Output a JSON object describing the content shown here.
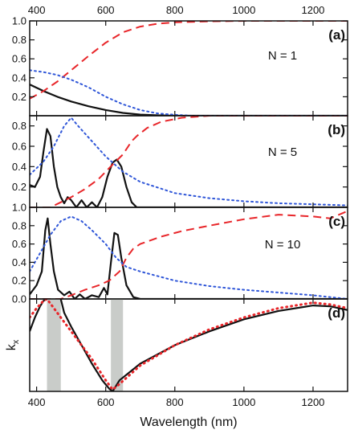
{
  "chart_data": {
    "type": "line",
    "xlabel": "Wavelength (nm)",
    "xlim": [
      380,
      1300
    ],
    "x_ticks": [
      400,
      600,
      800,
      1000,
      1200
    ],
    "colors": {
      "solid": "#111111",
      "dashed": "#e8262a",
      "dotted": "#2f56d8",
      "band": "#c9ccc9",
      "dotted_d": "#e8262a"
    },
    "panels": [
      {
        "id": "a",
        "label": "(a)",
        "annotation": "N = 1",
        "ylim": [
          0,
          1.0
        ],
        "y_ticks": [
          0.2,
          0.4,
          0.6,
          0.8,
          1.0
        ],
        "series": [
          {
            "style": "solid",
            "points": [
              [
                380,
                0.33
              ],
              [
                420,
                0.26
              ],
              [
                460,
                0.2
              ],
              [
                500,
                0.15
              ],
              [
                550,
                0.1
              ],
              [
                600,
                0.06
              ],
              [
                650,
                0.03
              ],
              [
                700,
                0.012
              ],
              [
                750,
                0.004
              ],
              [
                800,
                0.0
              ],
              [
                1300,
                0.0
              ]
            ]
          },
          {
            "style": "dashed",
            "points": [
              [
                380,
                0.18
              ],
              [
                420,
                0.26
              ],
              [
                460,
                0.36
              ],
              [
                500,
                0.48
              ],
              [
                550,
                0.63
              ],
              [
                600,
                0.77
              ],
              [
                650,
                0.88
              ],
              [
                700,
                0.94
              ],
              [
                750,
                0.97
              ],
              [
                800,
                0.985
              ],
              [
                900,
                0.995
              ],
              [
                1000,
                1.0
              ],
              [
                1300,
                1.0
              ]
            ]
          },
          {
            "style": "dotted",
            "points": [
              [
                380,
                0.48
              ],
              [
                420,
                0.46
              ],
              [
                460,
                0.43
              ],
              [
                500,
                0.38
              ],
              [
                550,
                0.3
              ],
              [
                600,
                0.2
              ],
              [
                650,
                0.12
              ],
              [
                700,
                0.06
              ],
              [
                750,
                0.025
              ],
              [
                800,
                0.01
              ],
              [
                850,
                0.0
              ],
              [
                1300,
                0.0
              ]
            ]
          }
        ]
      },
      {
        "id": "b",
        "label": "(b)",
        "annotation": "N = 5",
        "ylim": [
          0,
          0.9
        ],
        "y_ticks": [
          0.2,
          0.4,
          0.6,
          0.8
        ],
        "series": [
          {
            "style": "solid",
            "points": [
              [
                380,
                0.22
              ],
              [
                395,
                0.2
              ],
              [
                410,
                0.3
              ],
              [
                420,
                0.55
              ],
              [
                430,
                0.77
              ],
              [
                440,
                0.7
              ],
              [
                450,
                0.4
              ],
              [
                460,
                0.2
              ],
              [
                470,
                0.1
              ],
              [
                480,
                0.04
              ],
              [
                490,
                0.1
              ],
              [
                500,
                0.07
              ],
              [
                515,
                0.0
              ],
              [
                530,
                0.07
              ],
              [
                545,
                0.0
              ],
              [
                560,
                0.05
              ],
              [
                575,
                0.0
              ],
              [
                590,
                0.1
              ],
              [
                605,
                0.3
              ],
              [
                620,
                0.44
              ],
              [
                632,
                0.47
              ],
              [
                645,
                0.4
              ],
              [
                660,
                0.2
              ],
              [
                675,
                0.05
              ],
              [
                690,
                0.0
              ],
              [
                1300,
                0.0
              ]
            ]
          },
          {
            "style": "dashed",
            "points": [
              [
                380,
                0.0
              ],
              [
                440,
                0.0
              ],
              [
                470,
                0.05
              ],
              [
                500,
                0.1
              ],
              [
                540,
                0.18
              ],
              [
                580,
                0.28
              ],
              [
                620,
                0.42
              ],
              [
                650,
                0.52
              ],
              [
                675,
                0.65
              ],
              [
                690,
                0.7
              ],
              [
                720,
                0.78
              ],
              [
                760,
                0.84
              ],
              [
                820,
                0.88
              ],
              [
                900,
                0.9
              ],
              [
                1300,
                0.9
              ]
            ]
          },
          {
            "style": "dotted",
            "points": [
              [
                380,
                0.32
              ],
              [
                420,
                0.45
              ],
              [
                450,
                0.6
              ],
              [
                480,
                0.8
              ],
              [
                500,
                0.88
              ],
              [
                520,
                0.8
              ],
              [
                560,
                0.65
              ],
              [
                600,
                0.5
              ],
              [
                650,
                0.35
              ],
              [
                700,
                0.25
              ],
              [
                800,
                0.14
              ],
              [
                900,
                0.09
              ],
              [
                1000,
                0.06
              ],
              [
                1100,
                0.04
              ],
              [
                1200,
                0.03
              ],
              [
                1300,
                0.02
              ]
            ]
          }
        ]
      },
      {
        "id": "c",
        "label": "(c)",
        "annotation": "N = 10",
        "ylim": [
          0,
          1.0
        ],
        "y_ticks": [
          0.0,
          0.2,
          0.4,
          0.6,
          0.8,
          1.0
        ],
        "series": [
          {
            "style": "solid",
            "points": [
              [
                380,
                0.05
              ],
              [
                400,
                0.15
              ],
              [
                415,
                0.3
              ],
              [
                425,
                0.75
              ],
              [
                432,
                0.88
              ],
              [
                440,
                0.6
              ],
              [
                450,
                0.3
              ],
              [
                462,
                0.1
              ],
              [
                480,
                0.04
              ],
              [
                495,
                0.08
              ],
              [
                510,
                0.0
              ],
              [
                525,
                0.05
              ],
              [
                540,
                0.0
              ],
              [
                560,
                0.04
              ],
              [
                580,
                0.02
              ],
              [
                595,
                0.12
              ],
              [
                605,
                0.05
              ],
              [
                615,
                0.4
              ],
              [
                625,
                0.72
              ],
              [
                635,
                0.7
              ],
              [
                645,
                0.45
              ],
              [
                660,
                0.15
              ],
              [
                680,
                0.02
              ],
              [
                700,
                0.0
              ],
              [
                1300,
                0.0
              ]
            ]
          },
          {
            "style": "dashed",
            "points": [
              [
                380,
                0.0
              ],
              [
                440,
                0.0
              ],
              [
                470,
                0.0
              ],
              [
                500,
                0.04
              ],
              [
                540,
                0.1
              ],
              [
                580,
                0.15
              ],
              [
                610,
                0.2
              ],
              [
                640,
                0.3
              ],
              [
                660,
                0.45
              ],
              [
                680,
                0.55
              ],
              [
                700,
                0.6
              ],
              [
                760,
                0.68
              ],
              [
                820,
                0.74
              ],
              [
                900,
                0.8
              ],
              [
                1000,
                0.87
              ],
              [
                1100,
                0.92
              ],
              [
                1200,
                0.9
              ],
              [
                1250,
                0.88
              ],
              [
                1300,
                0.96
              ]
            ]
          },
          {
            "style": "dotted",
            "points": [
              [
                380,
                0.3
              ],
              [
                410,
                0.5
              ],
              [
                440,
                0.7
              ],
              [
                470,
                0.85
              ],
              [
                500,
                0.9
              ],
              [
                530,
                0.85
              ],
              [
                560,
                0.75
              ],
              [
                600,
                0.6
              ],
              [
                630,
                0.45
              ],
              [
                660,
                0.35
              ],
              [
                700,
                0.3
              ],
              [
                800,
                0.2
              ],
              [
                900,
                0.14
              ],
              [
                1000,
                0.1
              ],
              [
                1100,
                0.07
              ],
              [
                1200,
                0.04
              ],
              [
                1250,
                0.02
              ],
              [
                1300,
                0.0
              ]
            ]
          }
        ]
      },
      {
        "id": "d",
        "label": "(d)",
        "ylabel": "k",
        "ylabel_sub": "x",
        "ylim": [
          0,
          1.0
        ],
        "y_ticks": [],
        "bands": [
          [
            430,
            470
          ],
          [
            615,
            650
          ]
        ],
        "series": [
          {
            "style": "solid",
            "points": [
              [
                380,
                0.65
              ],
              [
                395,
                0.8
              ],
              [
                410,
                0.92
              ],
              [
                420,
                0.98
              ],
              [
                430,
                1.0
              ]
            ]
          },
          {
            "style": "solid",
            "points": [
              [
                470,
                1.0
              ],
              [
                480,
                0.85
              ],
              [
                500,
                0.7
              ],
              [
                530,
                0.5
              ],
              [
                560,
                0.3
              ],
              [
                590,
                0.12
              ],
              [
                610,
                0.03
              ],
              [
                620,
                0.0
              ],
              [
                640,
                0.12
              ],
              [
                700,
                0.3
              ],
              [
                800,
                0.5
              ],
              [
                900,
                0.65
              ],
              [
                1000,
                0.78
              ],
              [
                1100,
                0.87
              ],
              [
                1200,
                0.93
              ],
              [
                1250,
                0.92
              ],
              [
                1300,
                0.88
              ]
            ]
          },
          {
            "style": "dotted_d",
            "points": [
              [
                380,
                0.8
              ],
              [
                400,
                0.9
              ],
              [
                420,
                0.98
              ],
              [
                430,
                1.0
              ],
              [
                450,
                0.9
              ],
              [
                480,
                0.75
              ],
              [
                520,
                0.55
              ],
              [
                560,
                0.35
              ],
              [
                600,
                0.12
              ],
              [
                620,
                0.02
              ],
              [
                640,
                0.08
              ],
              [
                700,
                0.28
              ],
              [
                800,
                0.5
              ],
              [
                900,
                0.67
              ],
              [
                1000,
                0.8
              ],
              [
                1100,
                0.9
              ],
              [
                1200,
                0.96
              ],
              [
                1250,
                0.94
              ],
              [
                1300,
                0.9
              ]
            ]
          }
        ]
      }
    ]
  }
}
